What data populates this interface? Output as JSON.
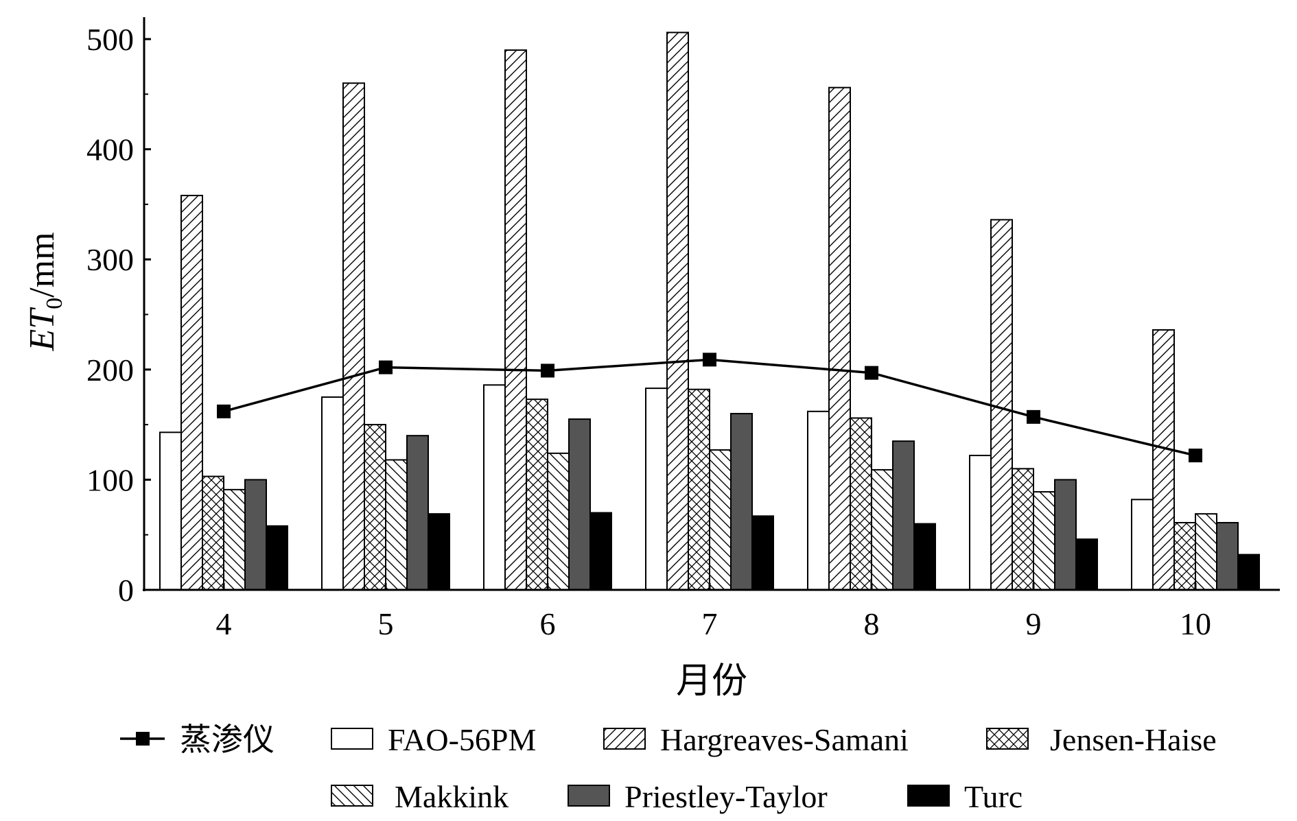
{
  "chart_data": {
    "type": "bar",
    "xlabel": "月份",
    "ylabel": {
      "main": "ET",
      "sub": "0",
      "unit": "/mm"
    },
    "ylim": [
      0,
      520
    ],
    "yticks": [
      0,
      100,
      200,
      300,
      400,
      500
    ],
    "categories": [
      "4",
      "5",
      "6",
      "7",
      "8",
      "9",
      "10"
    ],
    "grid": false,
    "legend_position": "bottom",
    "bar_series": [
      {
        "name": "FAO-56PM",
        "pattern": "white",
        "values": [
          143,
          175,
          186,
          183,
          162,
          122,
          82
        ]
      },
      {
        "name": "Hargreaves-Samani",
        "pattern": "diagonal-forward",
        "values": [
          358,
          460,
          490,
          506,
          456,
          336,
          236
        ]
      },
      {
        "name": "Jensen-Haise",
        "pattern": "crosshatch",
        "values": [
          103,
          150,
          173,
          182,
          156,
          110,
          61
        ]
      },
      {
        "name": "Makkink",
        "pattern": "diagonal-back",
        "values": [
          91,
          118,
          124,
          127,
          109,
          89,
          69
        ]
      },
      {
        "name": "Priestley-Taylor",
        "pattern": "dark-gray",
        "values": [
          100,
          140,
          155,
          160,
          135,
          100,
          61
        ]
      },
      {
        "name": "Turc",
        "pattern": "black",
        "values": [
          58,
          69,
          70,
          67,
          60,
          46,
          32
        ]
      }
    ],
    "line_series": {
      "name": "蒸渗仪",
      "values": [
        162,
        202,
        199,
        209,
        197,
        157,
        122
      ]
    }
  },
  "colors": {
    "dark_gray": "#555555",
    "black": "#000000",
    "white": "#ffffff"
  }
}
